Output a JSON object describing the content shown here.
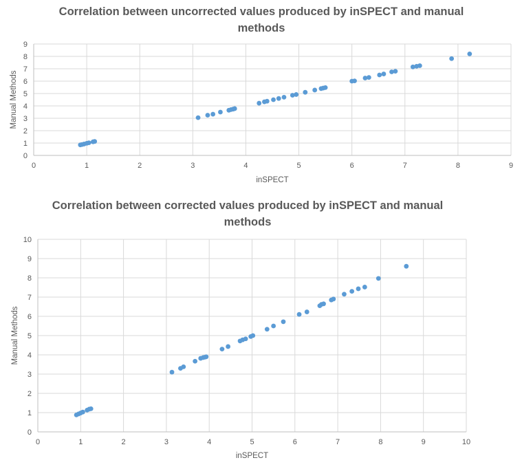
{
  "chart_data": [
    {
      "type": "scatter",
      "title": "Correlation between uncorrected values produced by inSPECT and manual methods",
      "xlabel": "inSPECT",
      "ylabel": "Manual Methods",
      "xlim": [
        0,
        9
      ],
      "ylim": [
        0,
        9
      ],
      "xticks": [
        "0",
        "1",
        "2",
        "3",
        "4",
        "5",
        "6",
        "7",
        "8",
        "9"
      ],
      "yticks": [
        "0",
        "1",
        "2",
        "3",
        "4",
        "5",
        "6",
        "7",
        "8",
        "9"
      ],
      "grid": true,
      "marker_color": "#5B9BD5",
      "points": [
        [
          0.88,
          0.85
        ],
        [
          0.91,
          0.88
        ],
        [
          0.95,
          0.92
        ],
        [
          1.0,
          0.98
        ],
        [
          1.04,
          1.02
        ],
        [
          1.12,
          1.1
        ],
        [
          1.15,
          1.13
        ],
        [
          3.1,
          3.05
        ],
        [
          3.28,
          3.25
        ],
        [
          3.38,
          3.33
        ],
        [
          3.52,
          3.5
        ],
        [
          3.68,
          3.65
        ],
        [
          3.72,
          3.7
        ],
        [
          3.76,
          3.74
        ],
        [
          3.79,
          3.78
        ],
        [
          4.25,
          4.22
        ],
        [
          4.35,
          4.33
        ],
        [
          4.4,
          4.38
        ],
        [
          4.52,
          4.5
        ],
        [
          4.62,
          4.6
        ],
        [
          4.72,
          4.7
        ],
        [
          4.88,
          4.86
        ],
        [
          4.95,
          4.92
        ],
        [
          5.12,
          5.1
        ],
        [
          5.3,
          5.28
        ],
        [
          5.42,
          5.4
        ],
        [
          5.46,
          5.44
        ],
        [
          5.5,
          5.48
        ],
        [
          6.0,
          6.0
        ],
        [
          6.05,
          6.02
        ],
        [
          6.25,
          6.25
        ],
        [
          6.32,
          6.3
        ],
        [
          6.52,
          6.5
        ],
        [
          6.6,
          6.58
        ],
        [
          6.75,
          6.75
        ],
        [
          6.82,
          6.8
        ],
        [
          7.15,
          7.15
        ],
        [
          7.22,
          7.2
        ],
        [
          7.28,
          7.25
        ],
        [
          7.88,
          7.82
        ],
        [
          8.22,
          8.2
        ]
      ]
    },
    {
      "type": "scatter",
      "title": "Correlation between corrected values produced by inSPECT and manual methods",
      "xlabel": "inSPECT",
      "ylabel": "Manual Methods",
      "xlim": [
        0,
        10
      ],
      "ylim": [
        0,
        10
      ],
      "xticks": [
        "0",
        "1",
        "2",
        "3",
        "4",
        "5",
        "6",
        "7",
        "8",
        "9",
        "10"
      ],
      "yticks": [
        "0",
        "1",
        "2",
        "3",
        "4",
        "5",
        "6",
        "7",
        "8",
        "9",
        "10"
      ],
      "grid": true,
      "marker_color": "#5B9BD5",
      "points": [
        [
          0.9,
          0.88
        ],
        [
          0.95,
          0.93
        ],
        [
          1.0,
          0.98
        ],
        [
          1.05,
          1.03
        ],
        [
          1.15,
          1.13
        ],
        [
          1.2,
          1.18
        ],
        [
          1.24,
          1.2
        ],
        [
          3.13,
          3.1
        ],
        [
          3.33,
          3.3
        ],
        [
          3.4,
          3.38
        ],
        [
          3.67,
          3.67
        ],
        [
          3.8,
          3.82
        ],
        [
          3.86,
          3.86
        ],
        [
          3.9,
          3.88
        ],
        [
          3.93,
          3.9
        ],
        [
          4.3,
          4.3
        ],
        [
          4.44,
          4.43
        ],
        [
          4.72,
          4.72
        ],
        [
          4.78,
          4.78
        ],
        [
          4.85,
          4.83
        ],
        [
          4.97,
          4.95
        ],
        [
          5.02,
          5.0
        ],
        [
          5.35,
          5.33
        ],
        [
          5.5,
          5.5
        ],
        [
          5.73,
          5.72
        ],
        [
          6.1,
          6.1
        ],
        [
          6.28,
          6.23
        ],
        [
          6.58,
          6.55
        ],
        [
          6.62,
          6.62
        ],
        [
          6.67,
          6.65
        ],
        [
          6.85,
          6.85
        ],
        [
          6.9,
          6.9
        ],
        [
          7.15,
          7.15
        ],
        [
          7.33,
          7.3
        ],
        [
          7.48,
          7.43
        ],
        [
          7.63,
          7.52
        ],
        [
          7.95,
          7.97
        ],
        [
          8.6,
          8.6
        ]
      ]
    }
  ]
}
